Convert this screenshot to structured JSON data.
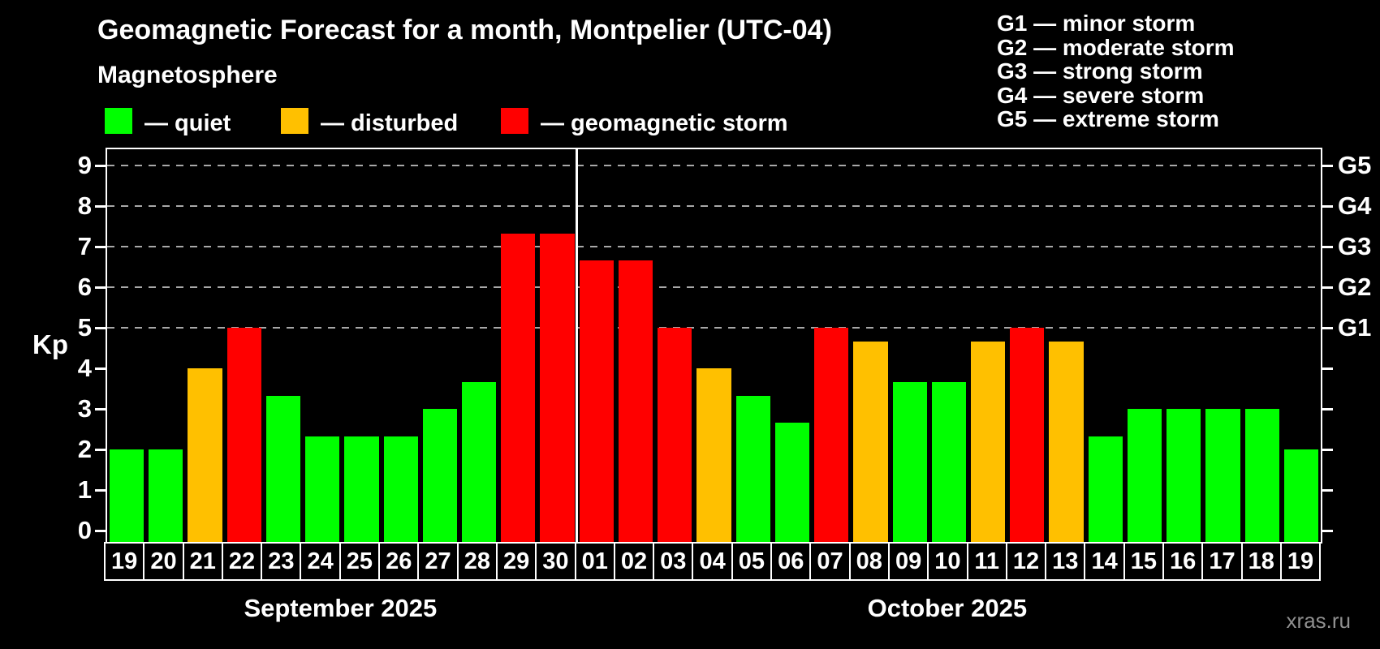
{
  "title": "Geomagnetic Forecast for a month, Montpelier (UTC-04)",
  "subtitle": "Magnetosphere",
  "kp_axis_label": "Kp",
  "watermark": "xras.ru",
  "colors": {
    "background": "#000000",
    "quiet": "#00ff00",
    "disturbed": "#ffc000",
    "storm": "#ff0000",
    "grid": "#a8a8a8",
    "axis": "#ffffff",
    "watermark": "#909090"
  },
  "condition_legend": [
    {
      "key": "quiet",
      "label": "— quiet"
    },
    {
      "key": "disturbed",
      "label": "— disturbed"
    },
    {
      "key": "storm",
      "label": "— geomagnetic storm"
    }
  ],
  "storm_scale_legend": [
    "G1 — minor storm",
    "G2 — moderate storm",
    "G3 — strong storm",
    "G4 — severe storm",
    "G5 — extreme storm"
  ],
  "chart_data": {
    "type": "bar",
    "title": "Geomagnetic Forecast for a month, Montpelier (UTC-04)",
    "xlabel": "",
    "ylabel": "Kp",
    "ylim": [
      -0.32,
      9.36
    ],
    "yticks": [
      0,
      1,
      2,
      3,
      4,
      5,
      6,
      7,
      8,
      9
    ],
    "gridlines_at": [
      5,
      6,
      7,
      8,
      9
    ],
    "right_axis_labels": [
      {
        "kp": 5,
        "label": "G1"
      },
      {
        "kp": 6,
        "label": "G2"
      },
      {
        "kp": 7,
        "label": "G3"
      },
      {
        "kp": 8,
        "label": "G4"
      },
      {
        "kp": 9,
        "label": "G5"
      }
    ],
    "legend_position": "top",
    "grid": "dashed horizontal at Kp 5-9 only",
    "months": [
      {
        "label": "September 2025",
        "days": [
          {
            "day": "19",
            "kp": 2.0,
            "condition": "quiet"
          },
          {
            "day": "20",
            "kp": 2.0,
            "condition": "quiet"
          },
          {
            "day": "21",
            "kp": 4.0,
            "condition": "disturbed"
          },
          {
            "day": "22",
            "kp": 5.0,
            "condition": "storm"
          },
          {
            "day": "23",
            "kp": 3.33,
            "condition": "quiet"
          },
          {
            "day": "24",
            "kp": 2.33,
            "condition": "quiet"
          },
          {
            "day": "25",
            "kp": 2.33,
            "condition": "quiet"
          },
          {
            "day": "26",
            "kp": 2.33,
            "condition": "quiet"
          },
          {
            "day": "27",
            "kp": 3.0,
            "condition": "quiet"
          },
          {
            "day": "28",
            "kp": 3.67,
            "condition": "quiet"
          },
          {
            "day": "29",
            "kp": 7.33,
            "condition": "storm"
          },
          {
            "day": "30",
            "kp": 7.33,
            "condition": "storm"
          }
        ]
      },
      {
        "label": "October 2025",
        "days": [
          {
            "day": "01",
            "kp": 6.67,
            "condition": "storm"
          },
          {
            "day": "02",
            "kp": 6.67,
            "condition": "storm"
          },
          {
            "day": "03",
            "kp": 5.0,
            "condition": "storm"
          },
          {
            "day": "04",
            "kp": 4.0,
            "condition": "disturbed"
          },
          {
            "day": "05",
            "kp": 3.33,
            "condition": "quiet"
          },
          {
            "day": "06",
            "kp": 2.67,
            "condition": "quiet"
          },
          {
            "day": "07",
            "kp": 5.0,
            "condition": "storm"
          },
          {
            "day": "08",
            "kp": 4.67,
            "condition": "disturbed"
          },
          {
            "day": "09",
            "kp": 3.67,
            "condition": "quiet"
          },
          {
            "day": "10",
            "kp": 3.67,
            "condition": "quiet"
          },
          {
            "day": "11",
            "kp": 4.67,
            "condition": "disturbed"
          },
          {
            "day": "12",
            "kp": 5.0,
            "condition": "storm"
          },
          {
            "day": "13",
            "kp": 4.67,
            "condition": "disturbed"
          },
          {
            "day": "14",
            "kp": 2.33,
            "condition": "quiet"
          },
          {
            "day": "15",
            "kp": 3.0,
            "condition": "quiet"
          },
          {
            "day": "16",
            "kp": 3.0,
            "condition": "quiet"
          },
          {
            "day": "17",
            "kp": 3.0,
            "condition": "quiet"
          },
          {
            "day": "18",
            "kp": 3.0,
            "condition": "quiet"
          },
          {
            "day": "19",
            "kp": 2.0,
            "condition": "quiet"
          }
        ]
      }
    ]
  }
}
